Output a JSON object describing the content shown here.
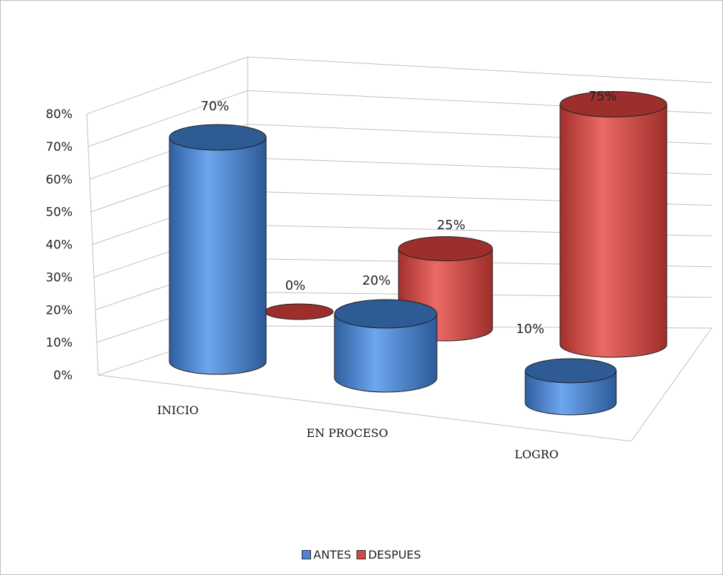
{
  "chart_data": {
    "type": "bar",
    "style": "3d-cylinder",
    "categories": [
      "INICIO",
      "EN PROCESO",
      "LOGRO"
    ],
    "series": [
      {
        "name": "ANTES",
        "values": [
          0.7,
          0.2,
          0.1
        ],
        "labels": [
          "70%",
          "20%",
          "10%"
        ],
        "color": "#4a86d6"
      },
      {
        "name": "DESPUES",
        "values": [
          0.0,
          0.25,
          0.75
        ],
        "labels": [
          "0%",
          "25%",
          "75%"
        ],
        "color": "#cf4a46"
      }
    ],
    "yticks": [
      "0%",
      "10%",
      "20%",
      "30%",
      "40%",
      "50%",
      "60%",
      "70%",
      "80%"
    ],
    "ylim": [
      0,
      0.8
    ],
    "grid": true,
    "legend_position": "bottom",
    "title": "",
    "xlabel": "",
    "ylabel": ""
  }
}
